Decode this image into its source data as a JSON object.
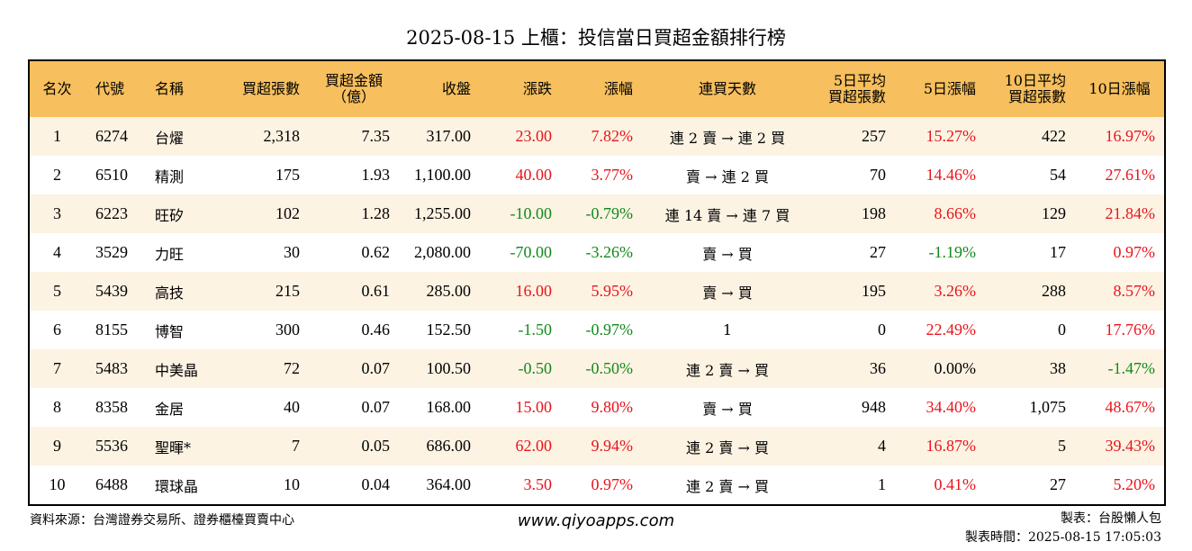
{
  "title": "2025-08-15 上櫃：投信當日買超金額排行榜",
  "headers": [
    "名次",
    "代號",
    "名稱",
    "買超張數",
    "買超金額\n（億）",
    "收盤",
    "漲跌",
    "漲幅",
    "連買天數",
    "5日平均\n買超張數",
    "5日漲幅",
    "10日平均\n買超張數",
    "10日漲幅"
  ],
  "rows": [
    [
      "1",
      "6274",
      "台燿",
      "2,318",
      "7.35",
      "317.00",
      "23.00",
      "7.82%",
      "連 2 賣 → 連 2 買",
      "257",
      "15.27%",
      "422",
      "16.97%"
    ],
    [
      "2",
      "6510",
      "精測",
      "175",
      "1.93",
      "1,100.00",
      "40.00",
      "3.77%",
      "賣 → 連 2 買",
      "70",
      "14.46%",
      "54",
      "27.61%"
    ],
    [
      "3",
      "6223",
      "旺矽",
      "102",
      "1.28",
      "1,255.00",
      "-10.00",
      "-0.79%",
      "連 14 賣 → 連 7 買",
      "198",
      "8.66%",
      "129",
      "21.84%"
    ],
    [
      "4",
      "3529",
      "力旺",
      "30",
      "0.62",
      "2,080.00",
      "-70.00",
      "-3.26%",
      "賣 → 買",
      "27",
      "-1.19%",
      "17",
      "0.97%"
    ],
    [
      "5",
      "5439",
      "高技",
      "215",
      "0.61",
      "285.00",
      "16.00",
      "5.95%",
      "賣 → 買",
      "195",
      "3.26%",
      "288",
      "8.57%"
    ],
    [
      "6",
      "8155",
      "博智",
      "300",
      "0.46",
      "152.50",
      "-1.50",
      "-0.97%",
      "1",
      "0",
      "22.49%",
      "0",
      "17.76%"
    ],
    [
      "7",
      "5483",
      "中美晶",
      "72",
      "0.07",
      "100.50",
      "-0.50",
      "-0.50%",
      "連 2 賣 → 買",
      "36",
      "0.00%",
      "38",
      "-1.47%"
    ],
    [
      "8",
      "8358",
      "金居",
      "40",
      "0.07",
      "168.00",
      "15.00",
      "9.80%",
      "賣 → 買",
      "948",
      "34.40%",
      "1,075",
      "48.67%"
    ],
    [
      "9",
      "5536",
      "聖暉*",
      "7",
      "0.05",
      "686.00",
      "62.00",
      "9.94%",
      "連 2 賣 → 買",
      "4",
      "16.87%",
      "5",
      "39.43%"
    ],
    [
      "10",
      "6488",
      "環球晶",
      "10",
      "0.04",
      "364.00",
      "3.50",
      "0.97%",
      "連 2 賣 → 買",
      "1",
      "0.41%",
      "27",
      "5.20%"
    ]
  ],
  "footer": {
    "source": "資料來源：台灣證券交易所、證券櫃檯買賣中心",
    "site": "www.qiyoapps.com",
    "maker": "製表：台股懶人包",
    "time": "製表時間：2025-08-15 17:05:03"
  },
  "colors": {
    "header_bg": "#f7bf5d",
    "odd_row_bg": "#fdf3e3",
    "up": "#e8141b",
    "down": "#11891b"
  }
}
